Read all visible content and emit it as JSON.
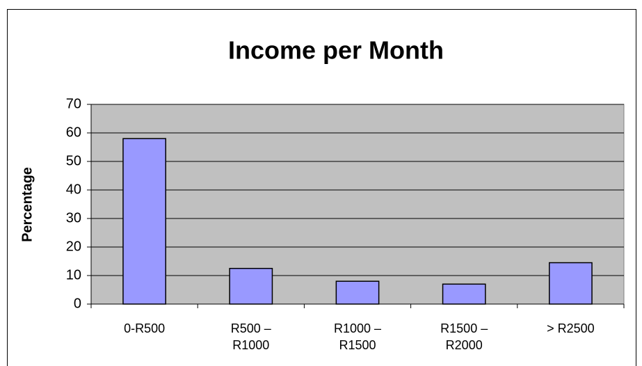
{
  "chart_data": {
    "type": "bar",
    "title": "Income per Month",
    "y_label": "Percentage",
    "categories": [
      "0-R500",
      "R500 – R1000",
      "R1000 – R1500",
      "R1500 – R2000",
      "> R2500"
    ],
    "values": [
      58,
      12.5,
      8,
      7,
      14.5
    ],
    "color": "#9999ff",
    "ylim": [
      0,
      70
    ],
    "yticks": [
      0,
      10,
      20,
      30,
      40,
      50,
      60,
      70
    ],
    "grid": true
  }
}
